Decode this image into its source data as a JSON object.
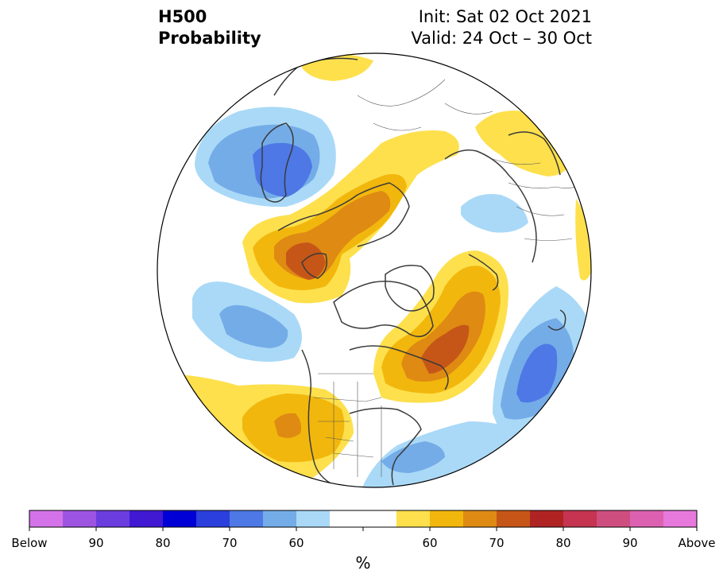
{
  "header": {
    "variable": "H500",
    "product": "Probability",
    "init": "Init: Sat 02 Oct 2021",
    "valid": "Valid: 24 Oct – 30 Oct"
  },
  "colorbar": {
    "unit": "%",
    "colors": [
      "#d473e9",
      "#9d55e1",
      "#6b3ddf",
      "#4119d3",
      "#0000d6",
      "#2a3fdc",
      "#4d78e5",
      "#74ace8",
      "#aad9f7",
      "#ffffff",
      "#ffffff",
      "#fde04c",
      "#f2b70d",
      "#de8a13",
      "#c65618",
      "#b02323",
      "#c53450",
      "#cf4e80",
      "#dc61b0",
      "#e779dc"
    ],
    "tick_labels": [
      "Below",
      "90",
      "80",
      "70",
      "60",
      "60",
      "70",
      "80",
      "90",
      "Above"
    ]
  },
  "map": {
    "projection": "north-polar-stereographic",
    "shading_levels": {
      "above_60": "#fde04c",
      "above_65": "#f2b70d",
      "above_70": "#de8a13",
      "above_75": "#c65618",
      "below_60": "#aad9f7",
      "below_65": "#74ace8",
      "below_70": "#4d78e5"
    }
  }
}
